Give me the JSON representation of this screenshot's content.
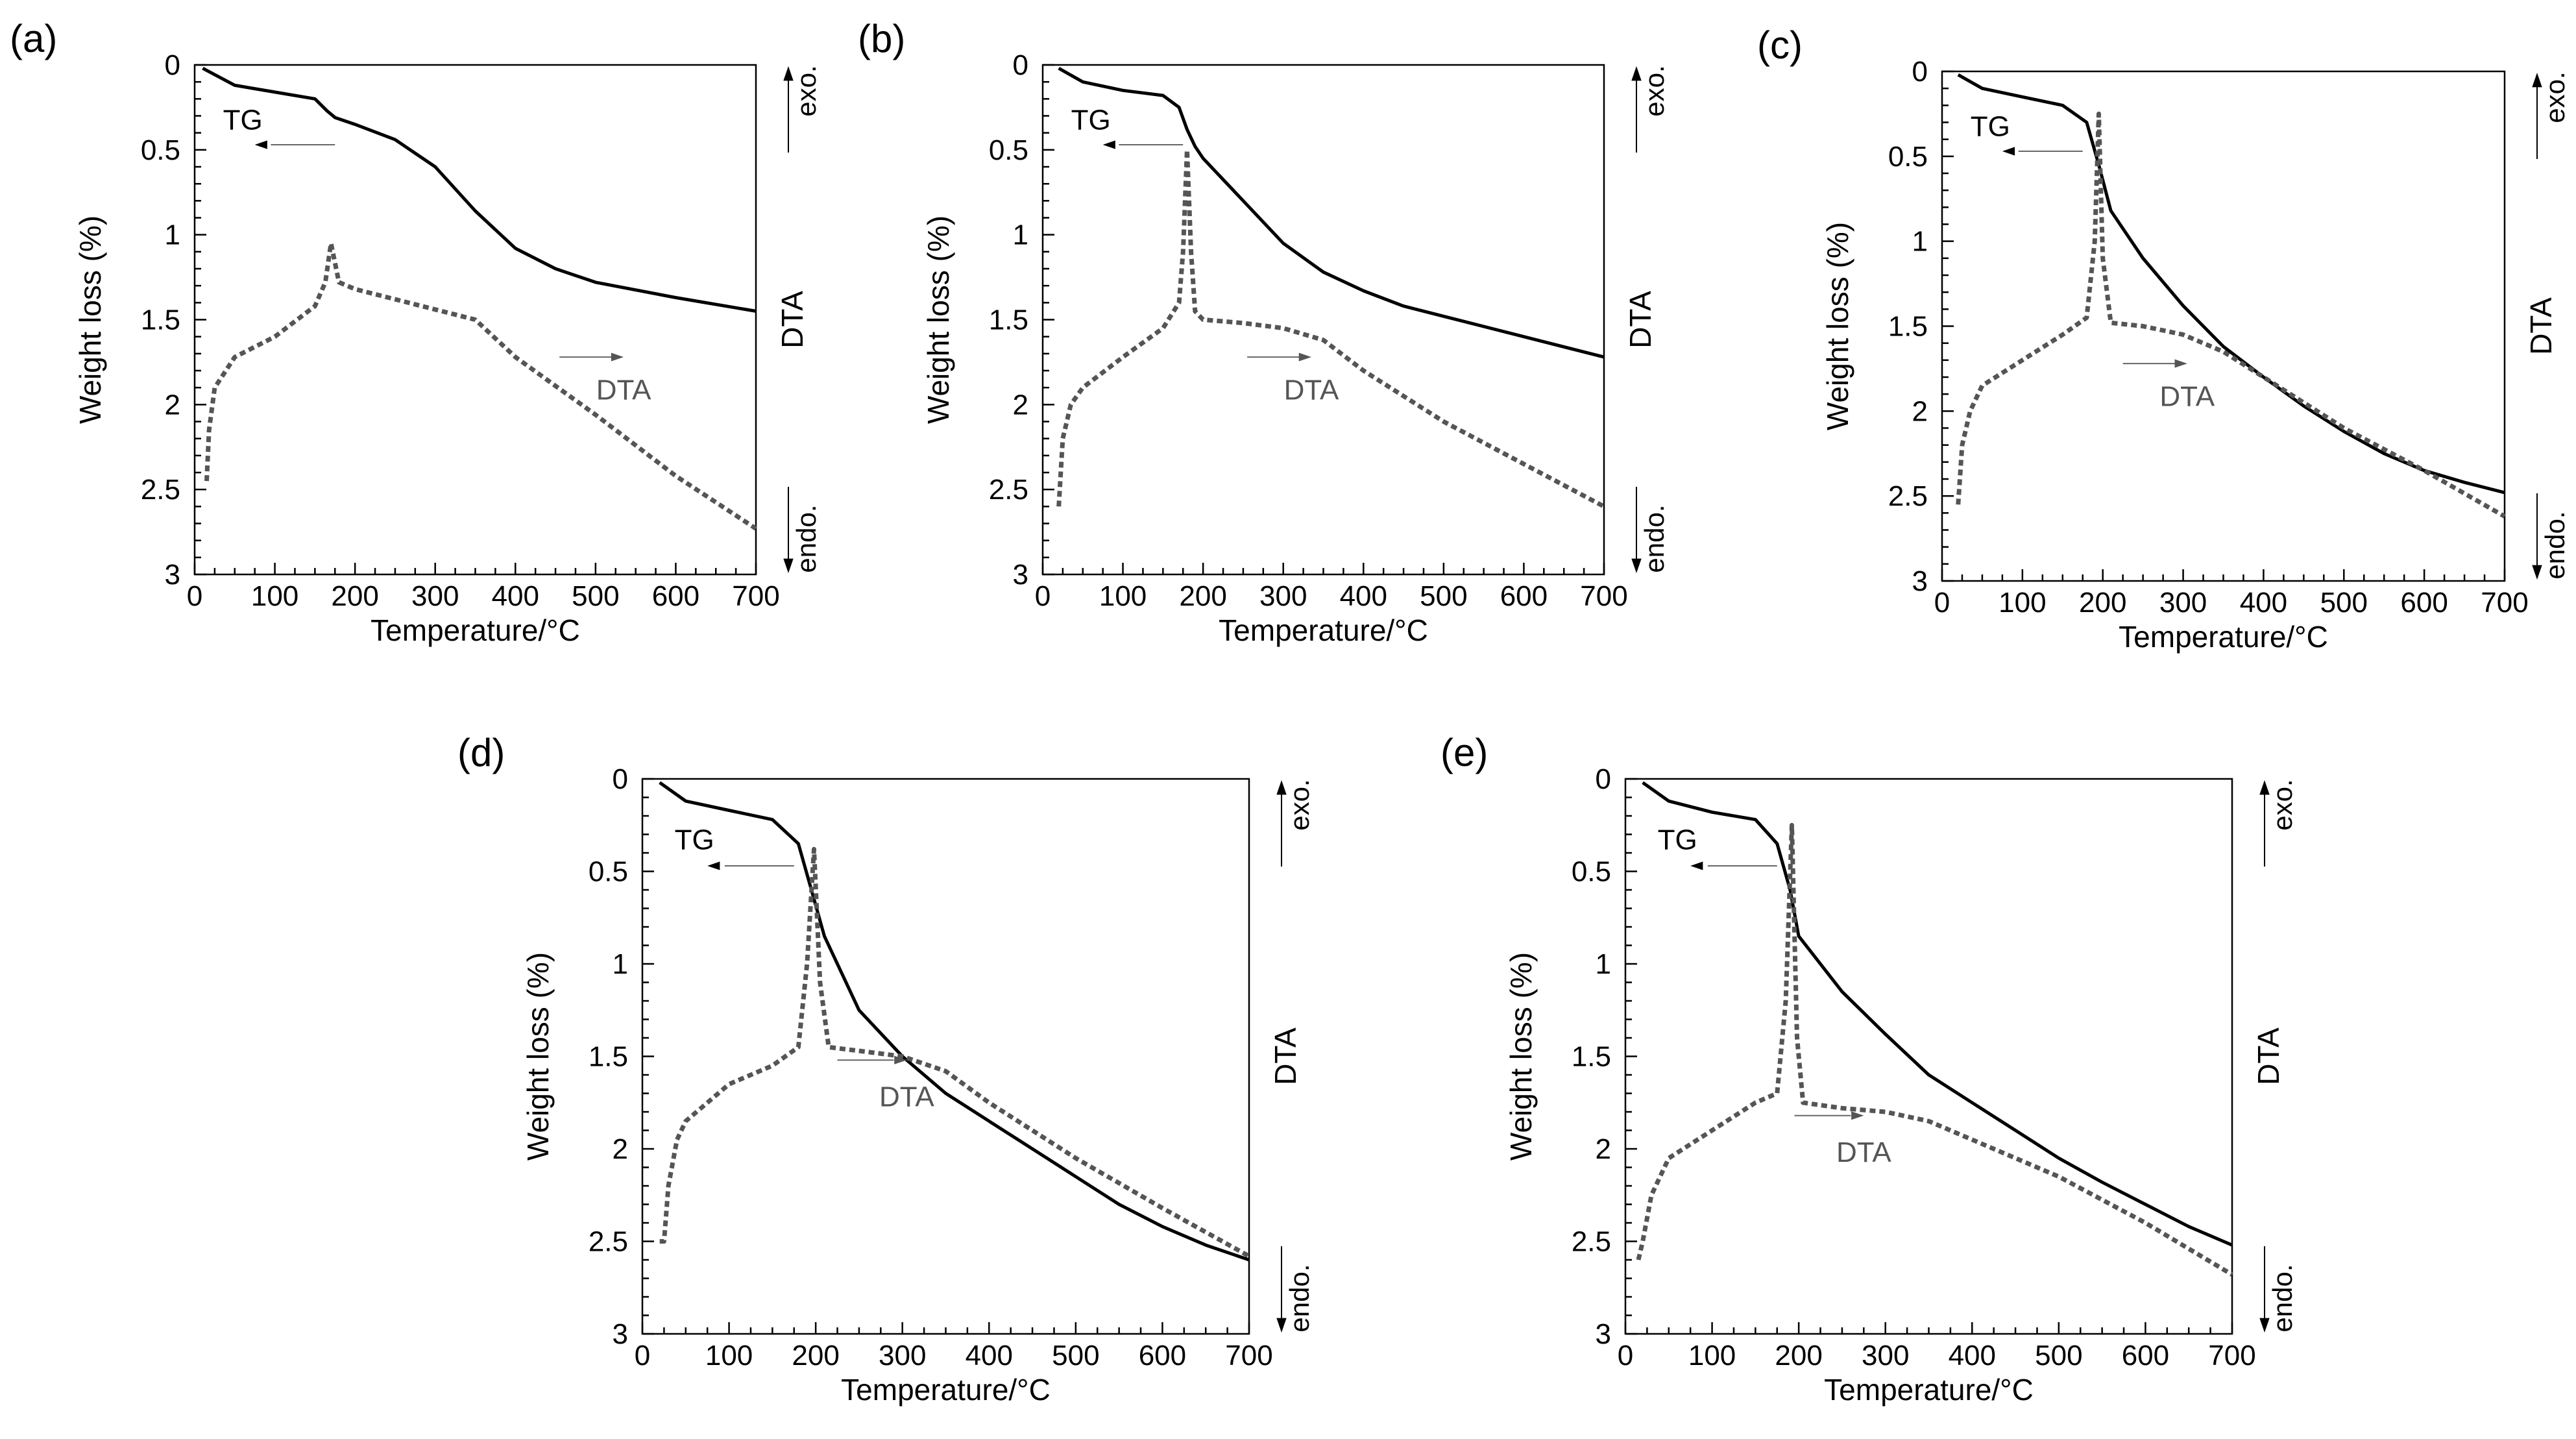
{
  "figure": {
    "colors": {
      "tg": "#000000",
      "dta": "#555555",
      "axis": "#000000",
      "dta_label": "#555555"
    }
  },
  "chart_data": [
    {
      "type": "line",
      "panel_label": "(a)",
      "xlabel": "Temperature/°C",
      "ylabel": "Weight loss (%)",
      "right_label": "DTA",
      "exo_label": "exo.",
      "endo_label": "endo.",
      "tg_label": "TG",
      "dta_label": "DTA",
      "xlim": [
        0,
        700
      ],
      "ylim": [
        0,
        3
      ],
      "y_inverted": true,
      "xticks": [
        "0",
        "100",
        "200",
        "300",
        "400",
        "500",
        "600",
        "700"
      ],
      "yticks": [
        "0",
        "0.5",
        "1",
        "1.5",
        "2",
        "2.5",
        "3"
      ],
      "series": [
        {
          "name": "TG",
          "style": "solid",
          "x": [
            10,
            50,
            100,
            150,
            165,
            175,
            200,
            250,
            300,
            350,
            400,
            450,
            500,
            600,
            700
          ],
          "y": [
            0.02,
            0.12,
            0.16,
            0.2,
            0.27,
            0.31,
            0.35,
            0.44,
            0.6,
            0.86,
            1.08,
            1.2,
            1.28,
            1.37,
            1.45
          ]
        },
        {
          "name": "DTA",
          "style": "dashed",
          "x": [
            15,
            18,
            25,
            50,
            100,
            150,
            163,
            170,
            180,
            200,
            250,
            300,
            350,
            400,
            500,
            600,
            700
          ],
          "y": [
            2.45,
            2.15,
            1.9,
            1.72,
            1.6,
            1.42,
            1.28,
            1.05,
            1.28,
            1.32,
            1.38,
            1.44,
            1.5,
            1.72,
            2.06,
            2.42,
            2.73
          ]
        }
      ]
    },
    {
      "type": "line",
      "panel_label": "(b)",
      "xlabel": "Temperature/°C",
      "ylabel": "Weight loss (%)",
      "right_label": "DTA",
      "exo_label": "exo.",
      "endo_label": "endo.",
      "tg_label": "TG",
      "dta_label": "DTA",
      "xlim": [
        0,
        700
      ],
      "ylim": [
        0,
        3
      ],
      "y_inverted": true,
      "xticks": [
        "0",
        "100",
        "200",
        "300",
        "400",
        "500",
        "600",
        "700"
      ],
      "yticks": [
        "0",
        "0.5",
        "1",
        "1.5",
        "2",
        "2.5",
        "3"
      ],
      "series": [
        {
          "name": "TG",
          "style": "solid",
          "x": [
            20,
            50,
            100,
            150,
            170,
            180,
            190,
            200,
            250,
            300,
            350,
            400,
            450,
            500,
            600,
            700
          ],
          "y": [
            0.02,
            0.1,
            0.15,
            0.18,
            0.25,
            0.38,
            0.48,
            0.55,
            0.8,
            1.05,
            1.22,
            1.33,
            1.42,
            1.48,
            1.6,
            1.72
          ]
        },
        {
          "name": "DTA",
          "style": "dashed",
          "x": [
            20,
            25,
            35,
            50,
            100,
            150,
            170,
            175,
            180,
            185,
            190,
            200,
            250,
            300,
            350,
            400,
            500,
            600,
            700
          ],
          "y": [
            2.6,
            2.2,
            2.0,
            1.9,
            1.72,
            1.55,
            1.4,
            1.1,
            0.5,
            1.1,
            1.45,
            1.5,
            1.52,
            1.55,
            1.62,
            1.8,
            2.1,
            2.35,
            2.6
          ]
        }
      ]
    },
    {
      "type": "line",
      "panel_label": "(c)",
      "xlabel": "Temperature/°C",
      "ylabel": "Weight loss (%)",
      "right_label": "DTA",
      "exo_label": "exo.",
      "endo_label": "endo.",
      "tg_label": "TG",
      "dta_label": "DTA",
      "xlim": [
        0,
        700
      ],
      "ylim": [
        0,
        3
      ],
      "y_inverted": true,
      "xticks": [
        "0",
        "100",
        "200",
        "300",
        "400",
        "500",
        "600",
        "700"
      ],
      "yticks": [
        "0",
        "0.5",
        "1",
        "1.5",
        "2",
        "2.5",
        "3"
      ],
      "series": [
        {
          "name": "TG",
          "style": "solid",
          "x": [
            20,
            50,
            100,
            150,
            180,
            195,
            210,
            250,
            300,
            350,
            400,
            450,
            500,
            550,
            600,
            650,
            700
          ],
          "y": [
            0.02,
            0.1,
            0.15,
            0.2,
            0.3,
            0.55,
            0.82,
            1.1,
            1.38,
            1.62,
            1.8,
            1.97,
            2.12,
            2.25,
            2.35,
            2.42,
            2.48
          ]
        },
        {
          "name": "DTA",
          "style": "dashed",
          "x": [
            20,
            25,
            35,
            50,
            100,
            150,
            180,
            190,
            195,
            200,
            210,
            250,
            300,
            350,
            400,
            500,
            600,
            700
          ],
          "y": [
            2.55,
            2.2,
            2.0,
            1.85,
            1.7,
            1.55,
            1.45,
            1.0,
            0.25,
            1.1,
            1.48,
            1.5,
            1.55,
            1.65,
            1.8,
            2.1,
            2.35,
            2.62
          ]
        }
      ]
    },
    {
      "type": "line",
      "panel_label": "(d)",
      "xlabel": "Temperature/°C",
      "ylabel": "Weight loss (%)",
      "right_label": "DTA",
      "exo_label": "exo.",
      "endo_label": "endo.",
      "tg_label": "TG",
      "dta_label": "DTA",
      "xlim": [
        0,
        700
      ],
      "ylim": [
        0,
        3
      ],
      "y_inverted": true,
      "xticks": [
        "0",
        "100",
        "200",
        "300",
        "400",
        "500",
        "600",
        "700"
      ],
      "yticks": [
        "0",
        "0.5",
        "1",
        "1.5",
        "2",
        "2.5",
        "3"
      ],
      "series": [
        {
          "name": "TG",
          "style": "solid",
          "x": [
            20,
            50,
            100,
            150,
            180,
            195,
            210,
            250,
            300,
            350,
            400,
            450,
            500,
            550,
            600,
            650,
            700
          ],
          "y": [
            0.02,
            0.12,
            0.17,
            0.22,
            0.35,
            0.6,
            0.85,
            1.25,
            1.5,
            1.7,
            1.85,
            2.0,
            2.15,
            2.3,
            2.42,
            2.52,
            2.6
          ]
        },
        {
          "name": "DTA",
          "style": "dashed",
          "x": [
            20,
            25,
            30,
            40,
            50,
            100,
            150,
            180,
            190,
            198,
            205,
            215,
            250,
            300,
            350,
            400,
            500,
            600,
            700
          ],
          "y": [
            2.5,
            2.5,
            2.2,
            1.95,
            1.85,
            1.65,
            1.55,
            1.45,
            1.0,
            0.38,
            1.1,
            1.45,
            1.47,
            1.5,
            1.58,
            1.75,
            2.05,
            2.32,
            2.58
          ]
        }
      ]
    },
    {
      "type": "line",
      "panel_label": "(e)",
      "xlabel": "Temperature/°C",
      "ylabel": "Weight loss (%)",
      "right_label": "DTA",
      "exo_label": "exo.",
      "endo_label": "endo.",
      "tg_label": "TG",
      "dta_label": "DTA",
      "xlim": [
        0,
        700
      ],
      "ylim": [
        0,
        3
      ],
      "y_inverted": true,
      "xticks": [
        "0",
        "100",
        "200",
        "300",
        "400",
        "500",
        "600",
        "700"
      ],
      "yticks": [
        "0",
        "0.5",
        "1",
        "1.5",
        "2",
        "2.5",
        "3"
      ],
      "series": [
        {
          "name": "TG",
          "style": "solid",
          "x": [
            20,
            50,
            100,
            150,
            175,
            190,
            200,
            250,
            300,
            350,
            400,
            450,
            500,
            550,
            600,
            650,
            700
          ],
          "y": [
            0.02,
            0.12,
            0.18,
            0.22,
            0.35,
            0.6,
            0.85,
            1.15,
            1.38,
            1.6,
            1.75,
            1.9,
            2.05,
            2.18,
            2.3,
            2.42,
            2.52
          ]
        },
        {
          "name": "DTA",
          "style": "dashed",
          "x": [
            15,
            20,
            30,
            50,
            100,
            150,
            175,
            185,
            192,
            198,
            205,
            250,
            300,
            350,
            400,
            500,
            600,
            700
          ],
          "y": [
            2.6,
            2.5,
            2.25,
            2.05,
            1.9,
            1.75,
            1.7,
            1.2,
            0.25,
            1.4,
            1.75,
            1.78,
            1.8,
            1.85,
            1.95,
            2.15,
            2.4,
            2.68
          ]
        }
      ]
    }
  ]
}
